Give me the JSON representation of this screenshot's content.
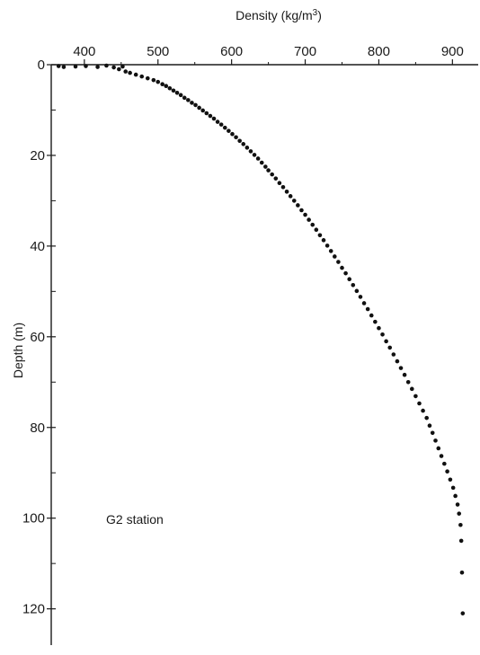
{
  "chart_data": {
    "type": "scatter",
    "title": "",
    "xlabel": "Density (kg/m",
    "xlabel_sup": "3",
    "xlabel_close": ")",
    "ylabel": "Depth (m)",
    "x_axis_position": "top",
    "y_inverted": true,
    "xlim": [
      355,
      935
    ],
    "ylim": [
      0,
      128
    ],
    "xticks": [
      400,
      500,
      600,
      700,
      800,
      900
    ],
    "xtick_labels": [
      "400",
      "500",
      "600",
      "700",
      "800",
      "900"
    ],
    "yticks": [
      0,
      20,
      40,
      60,
      80,
      100,
      120
    ],
    "ytick_labels": [
      "0",
      "20",
      "40",
      "60",
      "80",
      "100",
      "120"
    ],
    "grid": false,
    "annotation": "G2 station",
    "marker_color": "#111111",
    "series": [
      {
        "x": [
          365,
          372,
          388,
          402,
          418,
          430,
          440,
          447,
          452,
          456,
          462,
          470,
          478,
          486,
          494,
          500,
          506,
          511,
          516,
          521,
          526,
          531,
          536,
          541,
          546,
          551,
          556,
          561,
          566,
          571,
          576,
          581,
          586,
          591,
          596,
          601,
          606,
          611,
          616,
          621,
          626,
          631,
          636,
          641,
          646,
          650,
          655,
          660,
          665,
          670,
          675,
          680,
          685,
          690,
          695,
          700,
          705,
          710,
          715,
          720,
          725,
          730,
          735,
          740,
          745,
          750,
          755,
          760,
          765,
          770,
          775,
          780,
          785,
          790,
          795,
          800,
          805,
          810,
          815,
          820,
          825,
          830,
          835,
          840,
          845,
          850,
          855,
          860,
          865,
          869,
          873,
          877,
          881,
          885,
          889,
          893,
          897,
          901,
          904,
          907,
          909,
          911,
          912,
          913,
          914
        ],
        "y": [
          0.3,
          0.5,
          0.4,
          0.3,
          0.5,
          0.2,
          0.6,
          1.0,
          0.4,
          1.5,
          1.8,
          2.2,
          2.6,
          3.0,
          3.4,
          3.8,
          4.3,
          4.7,
          5.2,
          5.7,
          6.2,
          6.7,
          7.3,
          7.8,
          8.4,
          8.9,
          9.5,
          10.1,
          10.7,
          11.3,
          11.9,
          12.6,
          13.2,
          13.9,
          14.6,
          15.3,
          16.0,
          16.8,
          17.5,
          18.3,
          19.1,
          19.9,
          20.7,
          21.6,
          22.5,
          23.3,
          24.2,
          25.1,
          26.1,
          27.0,
          28.0,
          29.0,
          30.0,
          31.0,
          32.1,
          33.1,
          34.2,
          35.3,
          36.4,
          37.6,
          38.7,
          39.9,
          41.1,
          42.3,
          43.5,
          44.8,
          46.0,
          47.3,
          48.6,
          49.9,
          51.2,
          52.6,
          53.9,
          55.3,
          56.7,
          58.1,
          59.5,
          61.0,
          62.4,
          63.9,
          65.4,
          66.9,
          68.4,
          70.0,
          71.5,
          73.1,
          74.7,
          76.3,
          77.9,
          79.6,
          81.2,
          82.9,
          84.6,
          86.3,
          88.0,
          89.7,
          91.5,
          93.3,
          95.1,
          97.0,
          99.0,
          101.5,
          105.0,
          112.0,
          121.0
        ]
      }
    ]
  }
}
